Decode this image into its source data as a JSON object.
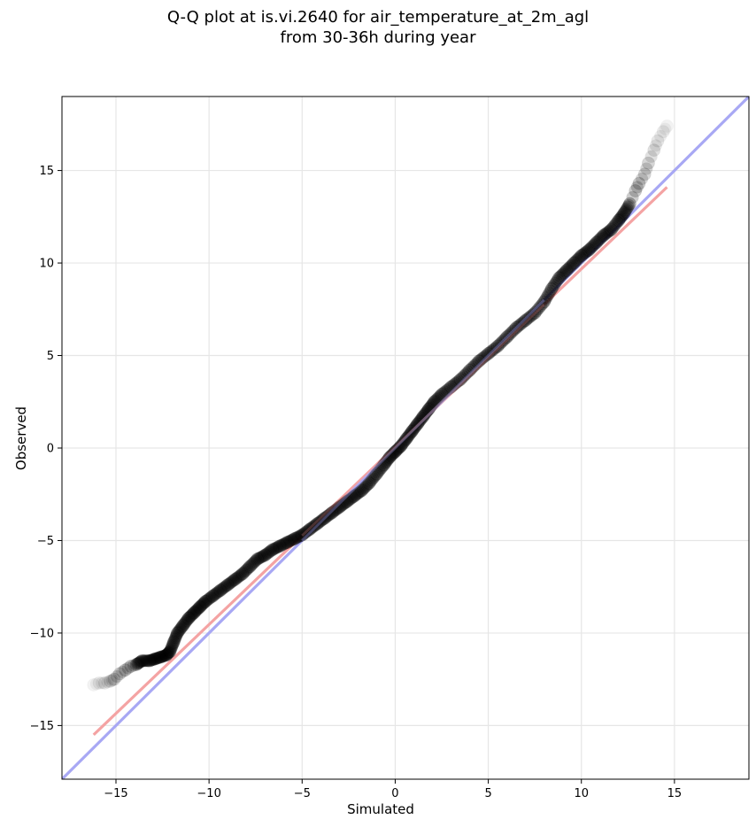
{
  "chart_data": {
    "type": "scatter",
    "title": "Q-Q plot at is.vi.2640 for air_temperature_at_2m_agl",
    "subtitle": "from 30-36h during year",
    "xlabel": "Simulated",
    "ylabel": "Observed",
    "xlim": [
      -17.9,
      19.0
    ],
    "ylim": [
      -17.9,
      19.0
    ],
    "xticks": [
      -15,
      -10,
      -5,
      0,
      5,
      10,
      15
    ],
    "yticks": [
      -15,
      -10,
      -5,
      0,
      5,
      10,
      15
    ],
    "xtick_labels": [
      "−15",
      "−10",
      "−5",
      "0",
      "5",
      "10",
      "15"
    ],
    "ytick_labels": [
      "−15",
      "−10",
      "−5",
      "0",
      "5",
      "10",
      "15"
    ],
    "grid": true,
    "series": [
      {
        "kind": "quantiles",
        "color": "#000000",
        "points": [
          [
            -16.2,
            -12.8
          ],
          [
            -15.9,
            -12.7
          ],
          [
            -15.6,
            -12.7
          ],
          [
            -15.3,
            -12.6
          ],
          [
            -15.1,
            -12.5
          ],
          [
            -14.8,
            -12.2
          ],
          [
            -14.5,
            -12.0
          ],
          [
            -14.2,
            -11.8
          ],
          [
            -13.9,
            -11.7
          ],
          [
            -13.6,
            -11.5
          ],
          [
            -13.2,
            -11.5
          ],
          [
            -12.9,
            -11.4
          ],
          [
            -12.6,
            -11.3
          ],
          [
            -12.3,
            -11.2
          ],
          [
            -12.1,
            -11.0
          ],
          [
            -11.9,
            -10.5
          ],
          [
            -11.7,
            -10.0
          ],
          [
            -11.4,
            -9.6
          ],
          [
            -11.1,
            -9.2
          ],
          [
            -10.8,
            -8.9
          ],
          [
            -10.5,
            -8.6
          ],
          [
            -10.2,
            -8.3
          ],
          [
            -9.8,
            -8.0
          ],
          [
            -9.4,
            -7.7
          ],
          [
            -9.0,
            -7.4
          ],
          [
            -8.6,
            -7.1
          ],
          [
            -8.2,
            -6.8
          ],
          [
            -7.8,
            -6.4
          ],
          [
            -7.4,
            -6.0
          ],
          [
            -7.0,
            -5.8
          ],
          [
            -6.6,
            -5.5
          ],
          [
            -6.2,
            -5.3
          ],
          [
            -5.8,
            -5.1
          ],
          [
            -5.4,
            -4.9
          ],
          [
            -5.0,
            -4.7
          ],
          [
            -4.6,
            -4.4
          ],
          [
            -4.2,
            -4.1
          ],
          [
            -3.8,
            -3.8
          ],
          [
            -3.4,
            -3.5
          ],
          [
            -3.0,
            -3.2
          ],
          [
            -2.6,
            -2.9
          ],
          [
            -2.2,
            -2.6
          ],
          [
            -1.8,
            -2.3
          ],
          [
            -1.4,
            -1.9
          ],
          [
            -1.0,
            -1.4
          ],
          [
            -0.6,
            -0.9
          ],
          [
            -0.3,
            -0.5
          ],
          [
            0.0,
            -0.2
          ],
          [
            0.3,
            0.1
          ],
          [
            0.6,
            0.5
          ],
          [
            0.9,
            0.9
          ],
          [
            1.2,
            1.3
          ],
          [
            1.5,
            1.7
          ],
          [
            1.8,
            2.1
          ],
          [
            2.1,
            2.5
          ],
          [
            2.5,
            2.9
          ],
          [
            3.0,
            3.3
          ],
          [
            3.5,
            3.7
          ],
          [
            4.0,
            4.2
          ],
          [
            4.5,
            4.7
          ],
          [
            5.0,
            5.1
          ],
          [
            5.5,
            5.5
          ],
          [
            6.0,
            6.0
          ],
          [
            6.5,
            6.5
          ],
          [
            7.0,
            6.9
          ],
          [
            7.5,
            7.3
          ],
          [
            8.0,
            7.9
          ],
          [
            8.4,
            8.6
          ],
          [
            8.8,
            9.2
          ],
          [
            9.2,
            9.6
          ],
          [
            9.6,
            10.0
          ],
          [
            10.0,
            10.4
          ],
          [
            10.4,
            10.7
          ],
          [
            10.8,
            11.1
          ],
          [
            11.2,
            11.5
          ],
          [
            11.6,
            11.8
          ],
          [
            12.0,
            12.3
          ],
          [
            12.3,
            12.7
          ],
          [
            12.6,
            13.2
          ],
          [
            12.9,
            13.9
          ],
          [
            13.1,
            14.3
          ],
          [
            13.4,
            14.8
          ],
          [
            13.6,
            15.4
          ],
          [
            13.9,
            16.1
          ],
          [
            14.1,
            16.6
          ],
          [
            14.4,
            17.1
          ],
          [
            14.6,
            17.4
          ]
        ]
      },
      {
        "kind": "fit-line",
        "color": "#f4a3a3",
        "points": [
          [
            -16.2,
            -15.5
          ],
          [
            14.6,
            14.1
          ]
        ]
      },
      {
        "kind": "identity-line",
        "color": "#a8a8f4",
        "points": [
          [
            -17.9,
            -17.9
          ],
          [
            19.0,
            19.0
          ]
        ]
      }
    ]
  }
}
